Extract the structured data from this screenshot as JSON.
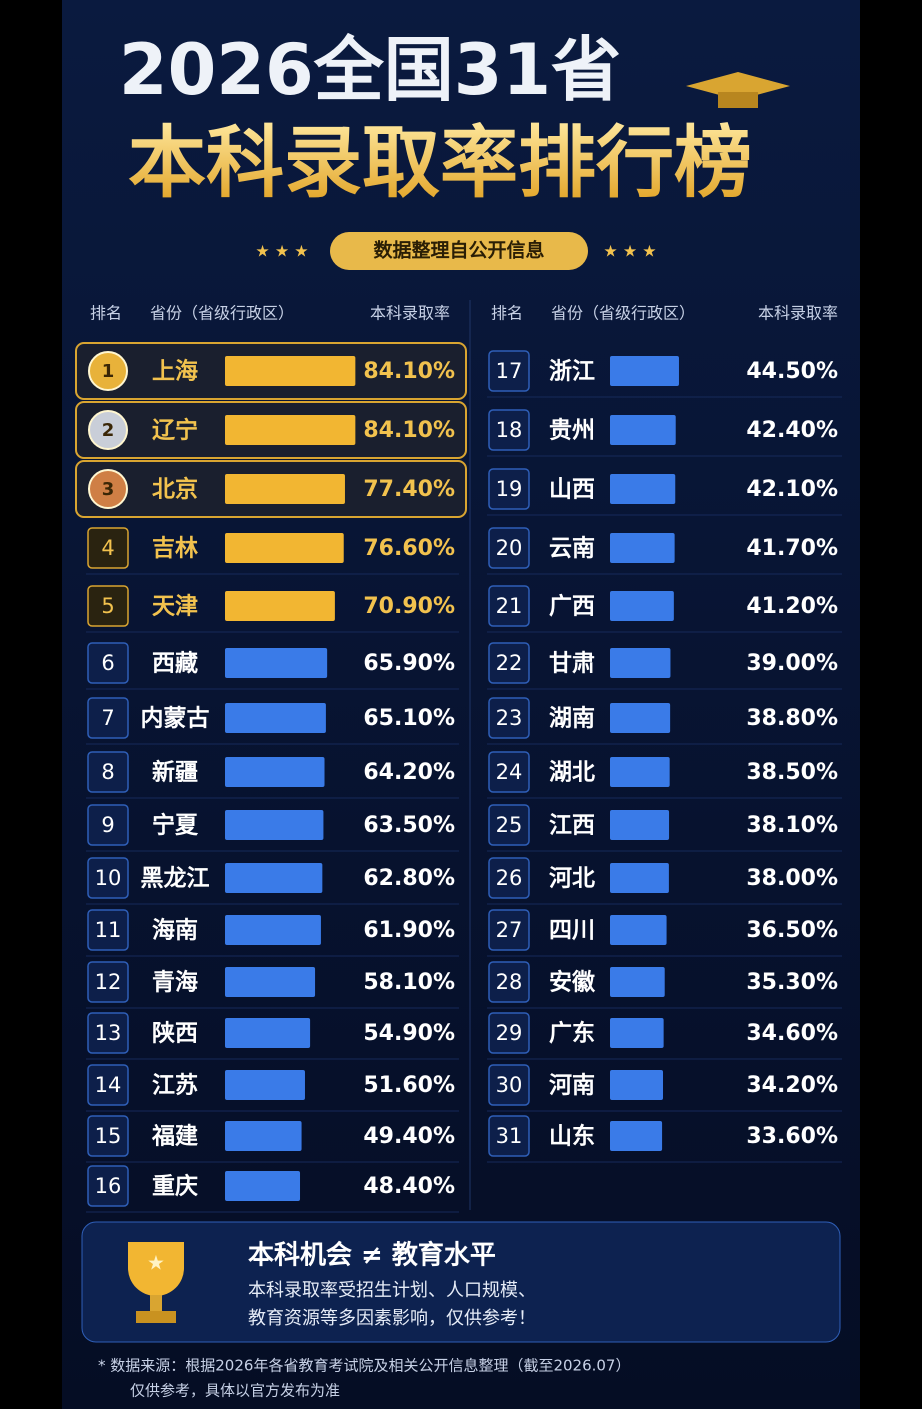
{
  "chart_data": {
    "type": "bar",
    "title": "2026全国31省",
    "subtitle": "本科录取率排行榜",
    "banner": "数据整理自公开信息",
    "column_headers": [
      "排名",
      "省份（省级行政区）",
      "本科录取率"
    ],
    "ranks": [
      1,
      2,
      3,
      4,
      5,
      6,
      7,
      8,
      9,
      10,
      11,
      12,
      13,
      14,
      15,
      16,
      17,
      18,
      19,
      20,
      21,
      22,
      23,
      24,
      25,
      26,
      27,
      28,
      29,
      30,
      31
    ],
    "categories": [
      "上海",
      "辽宁",
      "北京",
      "吉林",
      "天津",
      "西藏",
      "内蒙古",
      "新疆",
      "宁夏",
      "黑龙江",
      "海南",
      "青海",
      "陕西",
      "江苏",
      "福建",
      "重庆",
      "浙江",
      "贵州",
      "山西",
      "云南",
      "广西",
      "甘肃",
      "湖南",
      "湖北",
      "江西",
      "河北",
      "四川",
      "安徽",
      "广东",
      "河南",
      "山东"
    ],
    "values": [
      84.1,
      84.1,
      77.4,
      76.6,
      70.9,
      65.9,
      65.1,
      64.2,
      63.5,
      62.8,
      61.9,
      58.1,
      54.9,
      51.6,
      49.4,
      48.4,
      44.5,
      42.4,
      42.1,
      41.7,
      41.2,
      39.0,
      38.8,
      38.5,
      38.1,
      38.0,
      36.5,
      35.3,
      34.6,
      34.2,
      33.6
    ],
    "value_labels": [
      "84.10%",
      "84.10%",
      "77.40%",
      "76.60%",
      "70.90%",
      "65.90%",
      "65.10%",
      "64.20%",
      "63.50%",
      "62.80%",
      "61.90%",
      "58.10%",
      "54.90%",
      "51.60%",
      "49.40%",
      "48.40%",
      "44.50%",
      "42.40%",
      "42.10%",
      "41.70%",
      "41.20%",
      "39.00%",
      "38.80%",
      "38.50%",
      "38.10%",
      "38.00%",
      "36.50%",
      "35.30%",
      "34.60%",
      "34.20%",
      "33.60%"
    ],
    "colors": [
      "#f2b632",
      "#f2b632",
      "#f2b632",
      "#f2b632",
      "#f2b632",
      "#3a7be8",
      "#3a7be8",
      "#3a7be8",
      "#3a7be8",
      "#3a7be8",
      "#3a7be8",
      "#3a7be8",
      "#3a7be8",
      "#3a7be8",
      "#3a7be8",
      "#3a7be8",
      "#3a7be8",
      "#3a7be8",
      "#3a7be8",
      "#3a7be8",
      "#3a7be8",
      "#3a7be8",
      "#3a7be8",
      "#3a7be8",
      "#3a7be8",
      "#3a7be8",
      "#3a7be8",
      "#3a7be8",
      "#3a7be8",
      "#3a7be8",
      "#3a7be8"
    ],
    "note_title": "本科机会 ≠ 教育水平",
    "note_lines": [
      "本科录取率受招生计划、人口规模、",
      "教育资源等多因素影响，仅供参考！"
    ],
    "source_lines": [
      "* 数据来源：根据2026年各省教育考试院及相关公开信息整理（截至2026.07）",
      "仅供参考，具体以官方发布为准"
    ]
  }
}
